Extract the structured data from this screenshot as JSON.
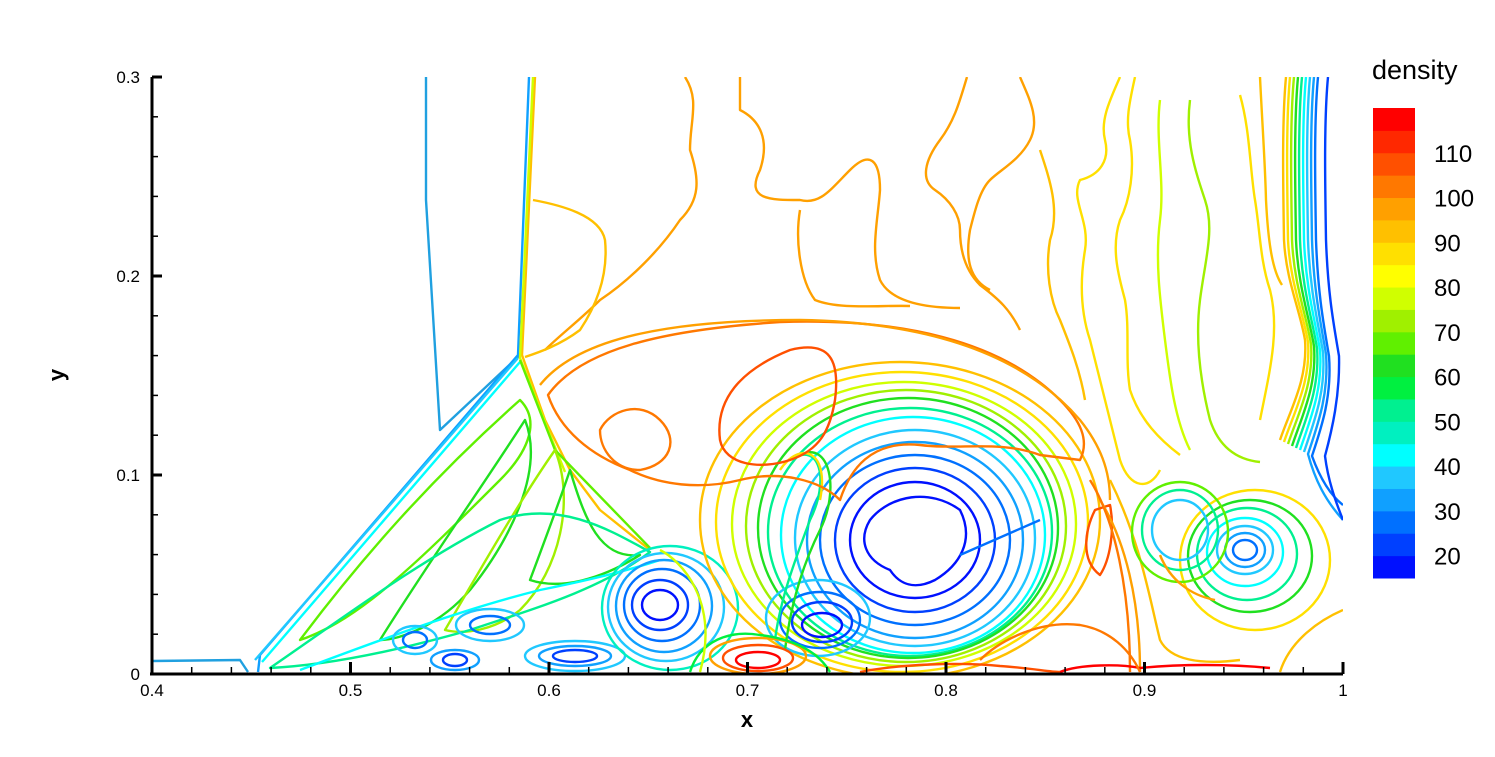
{
  "chart_data": {
    "type": "contour",
    "title": "",
    "xlabel": "x",
    "ylabel": "y",
    "xlim": [
      0.4,
      1.0
    ],
    "ylim": [
      0.0,
      0.3
    ],
    "x_ticks": [
      0.4,
      0.5,
      0.6,
      0.7,
      0.8,
      0.9,
      1.0
    ],
    "x_tick_labels": [
      "0.4",
      "0.5",
      "0.6",
      "0.7",
      "0.8",
      "0.9",
      "1"
    ],
    "y_ticks": [
      0.0,
      0.1,
      0.2,
      0.3
    ],
    "y_tick_labels": [
      "0",
      "0.1",
      "0.2",
      "0.3"
    ],
    "colorbar": {
      "title": "density",
      "range": [
        15,
        120
      ],
      "levels": [
        15,
        20,
        25,
        30,
        35,
        40,
        45,
        50,
        55,
        60,
        65,
        70,
        75,
        80,
        85,
        90,
        95,
        100,
        105,
        110,
        115,
        120
      ],
      "tick_values": [
        20,
        30,
        40,
        50,
        60,
        70,
        80,
        90,
        100,
        110
      ],
      "tick_labels": [
        "20",
        "30",
        "40",
        "50",
        "60",
        "70",
        "80",
        "90",
        "100",
        "110"
      ],
      "colors": [
        "#0010ff",
        "#0040ff",
        "#0070ff",
        "#10a0ff",
        "#20c8ff",
        "#00ffff",
        "#00f0c0",
        "#00f090",
        "#00f040",
        "#20e020",
        "#60f000",
        "#a0f000",
        "#d0ff00",
        "#ffff00",
        "#ffe000",
        "#ffc000",
        "#ffa000",
        "#ff7800",
        "#ff5000",
        "#ff2800",
        "#ff0000"
      ]
    },
    "legend_position": "right",
    "grid": false
  }
}
